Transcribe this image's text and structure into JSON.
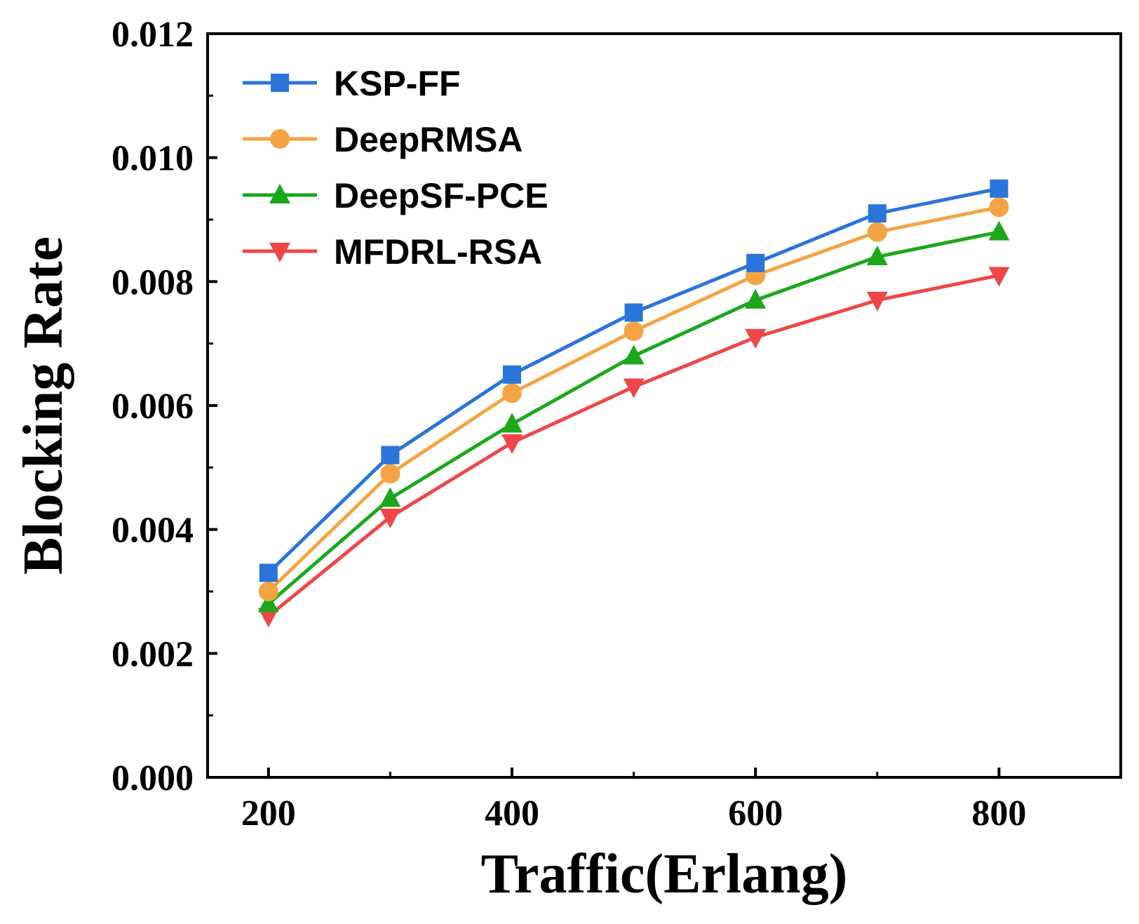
{
  "chart_data": {
    "type": "line",
    "title": "",
    "xlabel": "Traffic(Erlang)",
    "ylabel": "Blocking Rate",
    "x": [
      200,
      300,
      400,
      500,
      600,
      700,
      800
    ],
    "xlim": [
      150,
      900
    ],
    "ylim": [
      0.0,
      0.012
    ],
    "x_ticks": [
      200,
      400,
      600,
      800
    ],
    "x_tick_labels": [
      "200",
      "400",
      "600",
      "800"
    ],
    "y_ticks": [
      0.0,
      0.002,
      0.004,
      0.006,
      0.008,
      0.01,
      0.012
    ],
    "y_tick_labels": [
      "0.000",
      "0.002",
      "0.004",
      "0.006",
      "0.008",
      "0.010",
      "0.012"
    ],
    "grid": false,
    "legend_position": "top-left",
    "series": [
      {
        "name": "KSP-FF",
        "color": "#2a74dc",
        "marker": "square",
        "values": [
          0.0033,
          0.0052,
          0.0065,
          0.0075,
          0.0083,
          0.0091,
          0.0095
        ]
      },
      {
        "name": "DeepRMSA",
        "color": "#f5a443",
        "marker": "circle",
        "values": [
          0.003,
          0.0049,
          0.0062,
          0.0072,
          0.0081,
          0.0088,
          0.0092
        ]
      },
      {
        "name": "DeepSF-PCE",
        "color": "#1ba81b",
        "marker": "triangle-up",
        "values": [
          0.0028,
          0.0045,
          0.0057,
          0.0068,
          0.0077,
          0.0084,
          0.0088
        ]
      },
      {
        "name": "MFDRL-RSA",
        "color": "#ee4747",
        "marker": "triangle-down",
        "values": [
          0.0026,
          0.0042,
          0.0054,
          0.0063,
          0.0071,
          0.0077,
          0.0081
        ]
      }
    ]
  }
}
